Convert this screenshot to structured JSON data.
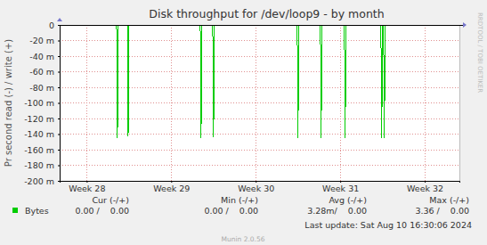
{
  "chart_data": {
    "type": "line",
    "title": "Disk throughput for /dev/loop9 - by month",
    "y_label": "Pr second read (-) / write (+)",
    "x": [
      27.68,
      28.354,
      28.364,
      28.374,
      28.481,
      28.491,
      28.501,
      29.344,
      29.354,
      29.364,
      29.491,
      29.501,
      29.511,
      30.491,
      30.501,
      30.511,
      30.765,
      30.775,
      30.785,
      31.049,
      31.059,
      31.069,
      31.481,
      31.491,
      31.501,
      31.512,
      31.522,
      31.532,
      32.41
    ],
    "series": [
      {
        "name": "Bytes",
        "color": "#00cc00",
        "values": [
          0,
          0,
          -0.145,
          0,
          0,
          -0.143,
          0,
          0,
          -0.145,
          0,
          0,
          -0.144,
          0,
          0,
          -0.145,
          0,
          0,
          -0.145,
          0,
          0,
          -0.145,
          0,
          0,
          -0.145,
          0,
          0,
          -0.145,
          0,
          0
        ]
      }
    ],
    "xlim": [
      27.68,
      32.41
    ],
    "xticks": [
      {
        "value": 28,
        "label": "Week 28"
      },
      {
        "value": 29,
        "label": "Week 29"
      },
      {
        "value": 30,
        "label": "Week 30"
      },
      {
        "value": 31,
        "label": "Week 31"
      },
      {
        "value": 32,
        "label": "Week 32"
      }
    ],
    "ylim": [
      -0.2,
      0
    ],
    "yticks": [
      0,
      {
        "value": -0.02,
        "label": "-20 m"
      },
      {
        "value": -0.04,
        "label": "-40 m"
      },
      {
        "value": -0.06,
        "label": "-60 m"
      },
      {
        "value": -0.08,
        "label": "-80 m"
      },
      {
        "value": -0.1,
        "label": "-100 m"
      },
      {
        "value": -0.12,
        "label": "-120 m"
      },
      {
        "value": -0.14,
        "label": "-140 m"
      },
      {
        "value": -0.16,
        "label": "-160 m"
      },
      {
        "value": -0.18,
        "label": "-180 m"
      },
      {
        "value": -0.2,
        "label": "-200 m"
      }
    ],
    "grid": true,
    "legend": "bottom",
    "summary": {
      "columns": [
        "Cur (-/+)",
        "Min (-/+)",
        "Avg (-/+)",
        "Max (-/+)"
      ],
      "cells": [
        "0.00 /    0.00",
        "0.00 /    0.00",
        "3.28m/    0.00",
        "3.36 /    0.00"
      ]
    },
    "last_update": "Last update: Sat Aug 10 16:30:06 2024",
    "generator": "Munin 2.0.56",
    "watermark": "RRDTOOL / TOBI OETIKER"
  }
}
